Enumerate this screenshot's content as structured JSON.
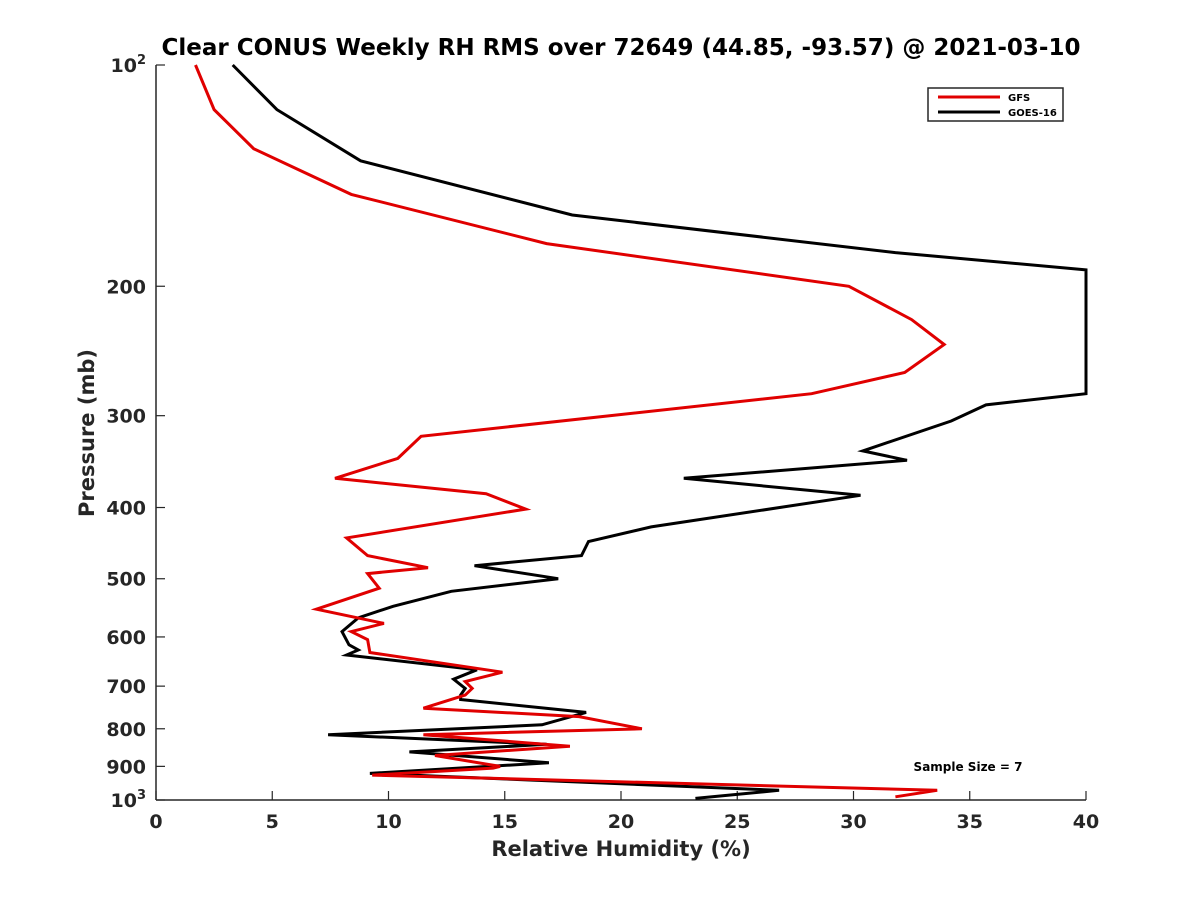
{
  "chart_data": {
    "type": "line",
    "title": "Clear CONUS Weekly RH RMS over 72649 (44.85, -93.57) @ 2021-03-10",
    "xlabel": "Relative Humidity (%)",
    "ylabel": "Pressure (mb)",
    "xlim": [
      0,
      40
    ],
    "ylim": [
      100,
      1000
    ],
    "y_scale": "log",
    "y_reversed": true,
    "grid": false,
    "legend_position": "top-right",
    "annotation": "Sample Size = 7",
    "x_ticks": [
      {
        "value": 0,
        "label": "0"
      },
      {
        "value": 5,
        "label": "5"
      },
      {
        "value": 10,
        "label": "10"
      },
      {
        "value": 15,
        "label": "15"
      },
      {
        "value": 20,
        "label": "20"
      },
      {
        "value": 25,
        "label": "25"
      },
      {
        "value": 30,
        "label": "30"
      },
      {
        "value": 35,
        "label": "35"
      },
      {
        "value": 40,
        "label": "40"
      }
    ],
    "y_ticks": [
      {
        "value": 100,
        "base": "10",
        "exp": "2"
      },
      {
        "value": 200,
        "base": "200",
        "exp": ""
      },
      {
        "value": 300,
        "base": "300",
        "exp": ""
      },
      {
        "value": 400,
        "base": "400",
        "exp": ""
      },
      {
        "value": 500,
        "base": "500",
        "exp": ""
      },
      {
        "value": 600,
        "base": "600",
        "exp": ""
      },
      {
        "value": 700,
        "base": "700",
        "exp": ""
      },
      {
        "value": 800,
        "base": "800",
        "exp": ""
      },
      {
        "value": 900,
        "base": "900",
        "exp": ""
      },
      {
        "value": 1000,
        "base": "10",
        "exp": "3"
      }
    ],
    "series": [
      {
        "name": "GFS",
        "color": "#e00000",
        "points": [
          [
            1.7,
            100
          ],
          [
            2.5,
            115
          ],
          [
            4.2,
            130
          ],
          [
            8.4,
            150
          ],
          [
            16.8,
            175
          ],
          [
            29.8,
            200
          ],
          [
            32.5,
            222
          ],
          [
            33.9,
            240
          ],
          [
            32.2,
            262
          ],
          [
            28.2,
            280
          ],
          [
            11.4,
            320
          ],
          [
            10.4,
            343
          ],
          [
            7.7,
            365
          ],
          [
            14.2,
            383
          ],
          [
            15.9,
            402
          ],
          [
            8.2,
            440
          ],
          [
            9.1,
            465
          ],
          [
            11.7,
            483
          ],
          [
            9.1,
            492
          ],
          [
            9.6,
            515
          ],
          [
            6.9,
            550
          ],
          [
            9.8,
            575
          ],
          [
            8.4,
            590
          ],
          [
            9.1,
            605
          ],
          [
            9.2,
            630
          ],
          [
            14.9,
            670
          ],
          [
            13.3,
            690
          ],
          [
            13.6,
            705
          ],
          [
            13.3,
            720
          ],
          [
            11.5,
            750
          ],
          [
            18.2,
            770
          ],
          [
            20.9,
            800
          ],
          [
            11.5,
            815
          ],
          [
            17.8,
            845
          ],
          [
            12.0,
            870
          ],
          [
            14.8,
            900
          ],
          [
            14.5,
            905
          ],
          [
            9.3,
            925
          ],
          [
            33.6,
            970
          ],
          [
            31.8,
            990
          ]
        ]
      },
      {
        "name": "GOES-16",
        "color": "#000000",
        "points": [
          [
            3.3,
            100
          ],
          [
            5.2,
            115
          ],
          [
            8.8,
            135
          ],
          [
            17.9,
            160
          ],
          [
            31.8,
            180
          ],
          [
            40.0,
            190
          ],
          [
            40.0,
            280
          ],
          [
            35.7,
            290
          ],
          [
            34.2,
            305
          ],
          [
            30.4,
            335
          ],
          [
            32.3,
            345
          ],
          [
            22.7,
            365
          ],
          [
            30.3,
            385
          ],
          [
            21.3,
            425
          ],
          [
            18.6,
            445
          ],
          [
            18.3,
            465
          ],
          [
            13.7,
            480
          ],
          [
            17.3,
            500
          ],
          [
            12.7,
            520
          ],
          [
            10.2,
            545
          ],
          [
            8.7,
            565
          ],
          [
            8.0,
            590
          ],
          [
            8.3,
            615
          ],
          [
            8.7,
            625
          ],
          [
            8.2,
            635
          ],
          [
            13.8,
            665
          ],
          [
            12.8,
            685
          ],
          [
            13.3,
            705
          ],
          [
            13.1,
            720
          ],
          [
            13.1,
            730
          ],
          [
            18.5,
            760
          ],
          [
            16.6,
            790
          ],
          [
            7.4,
            815
          ],
          [
            16.8,
            840
          ],
          [
            10.9,
            860
          ],
          [
            16.9,
            890
          ],
          [
            9.2,
            920
          ],
          [
            26.8,
            970
          ],
          [
            23.2,
            995
          ]
        ]
      }
    ]
  }
}
